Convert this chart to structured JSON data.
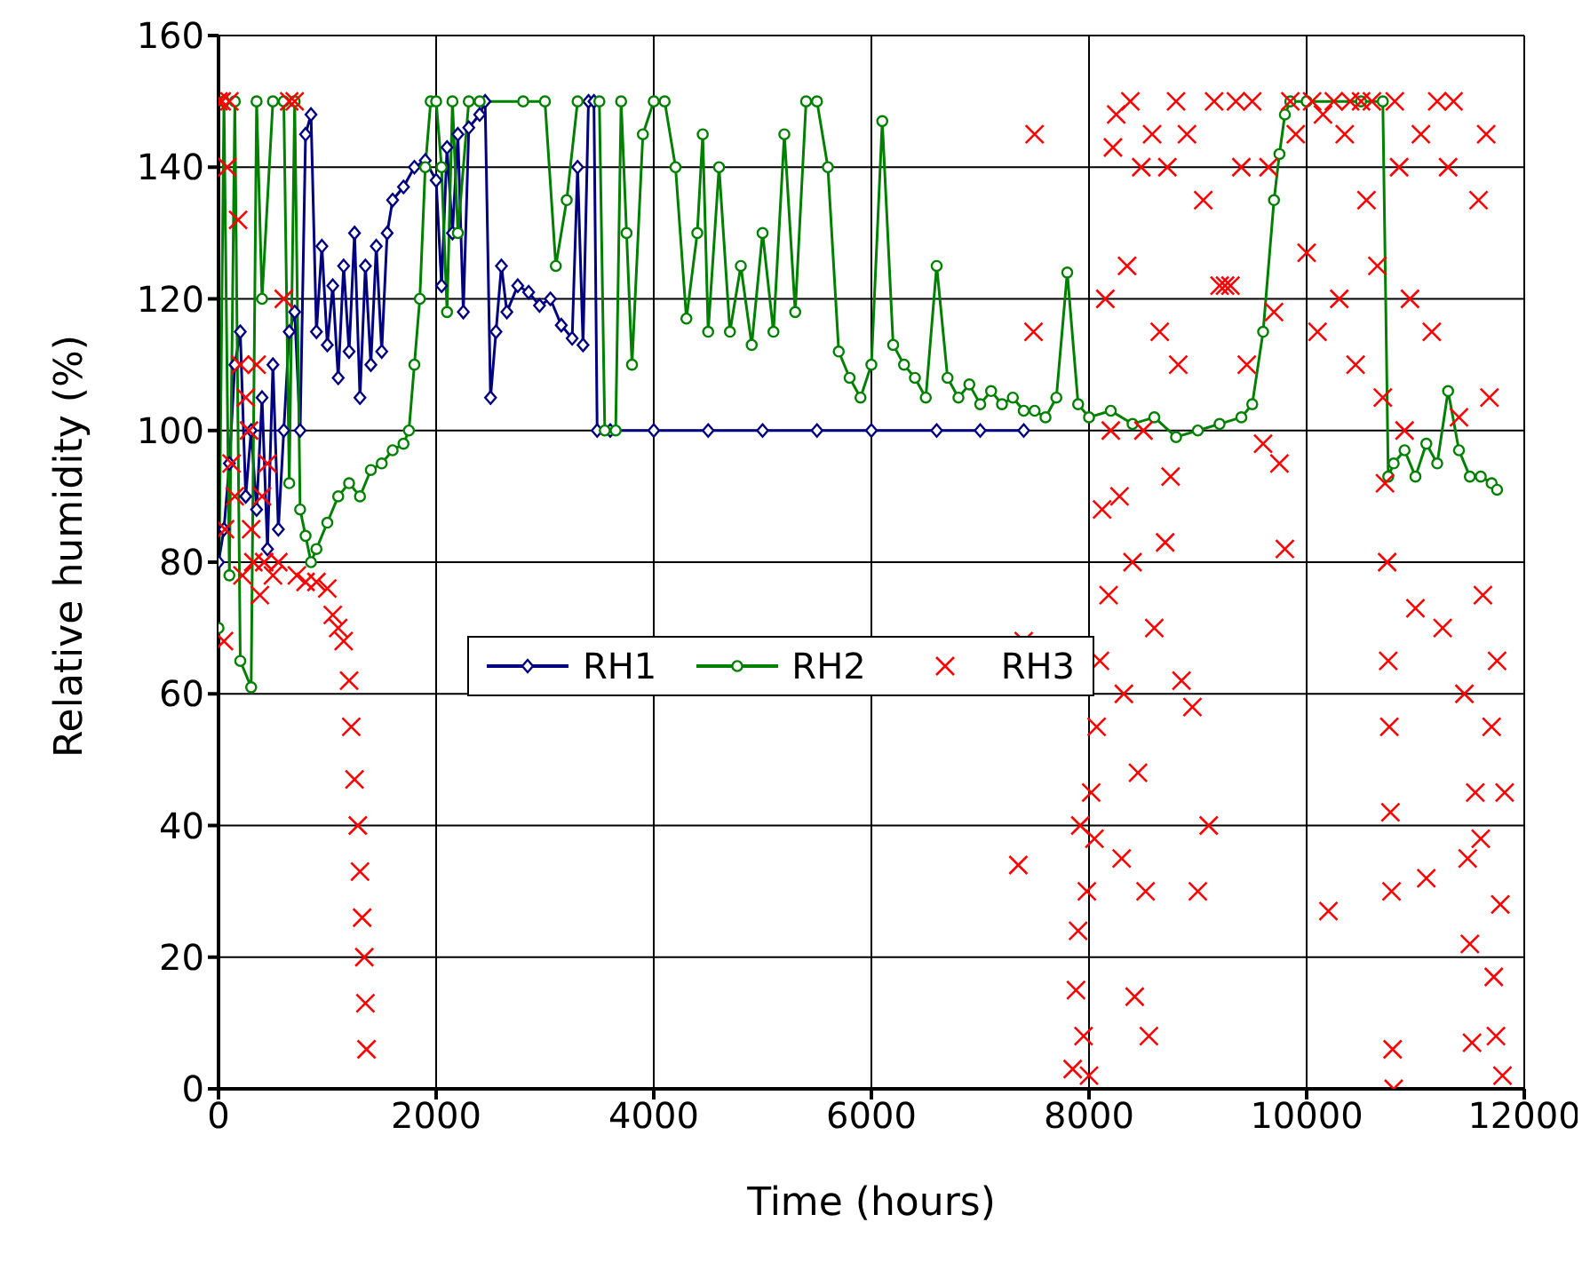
{
  "chart_data": {
    "type": "line",
    "xlabel": "Time (hours)",
    "ylabel": "Relative humidity (%)",
    "xlim": [
      0,
      12000
    ],
    "xticks": [
      0,
      2000,
      4000,
      6000,
      8000,
      10000,
      12000
    ],
    "ylim": [
      0,
      160
    ],
    "yticks": [
      0,
      20,
      40,
      60,
      80,
      100,
      120,
      140,
      160
    ],
    "grid": true,
    "legend": "left",
    "line_style": "solid",
    "series": [
      {
        "name": "RH1",
        "color": "#000080",
        "marker": "diamond",
        "x": [
          0,
          50,
          100,
          150,
          200,
          250,
          300,
          350,
          400,
          450,
          500,
          550,
          600,
          650,
          700,
          750,
          800,
          850,
          900,
          950,
          1000,
          1050,
          1100,
          1150,
          1200,
          1250,
          1300,
          1350,
          1400,
          1450,
          1500,
          1550,
          1600,
          1700,
          1800,
          1900,
          2000,
          2050,
          2100,
          2150,
          2200,
          2250,
          2300,
          2400,
          2450,
          2500,
          2550,
          2600,
          2650,
          2750,
          2850,
          2950,
          3050,
          3150,
          3250,
          3300,
          3350,
          3400,
          3450,
          3480,
          3600,
          4000,
          4500,
          5000,
          5500,
          6000,
          6600,
          7000,
          7400
        ],
        "values": [
          80,
          85,
          95,
          110,
          115,
          90,
          100,
          88,
          105,
          82,
          110,
          85,
          100,
          115,
          118,
          100,
          145,
          148,
          115,
          128,
          113,
          122,
          108,
          125,
          112,
          130,
          105,
          125,
          110,
          128,
          112,
          130,
          135,
          137,
          140,
          141,
          138,
          122,
          143,
          130,
          145,
          118,
          146,
          148,
          150,
          105,
          115,
          125,
          118,
          122,
          121,
          119,
          120,
          116,
          114,
          140,
          113,
          150,
          150,
          100,
          100,
          100,
          100,
          100,
          100,
          100,
          100,
          100,
          100
        ]
      },
      {
        "name": "RH2",
        "color": "#008000",
        "marker": "circle",
        "x": [
          0,
          50,
          100,
          150,
          200,
          300,
          350,
          400,
          500,
          600,
          650,
          700,
          750,
          800,
          850,
          900,
          1000,
          1100,
          1200,
          1300,
          1400,
          1500,
          1600,
          1700,
          1750,
          1800,
          1850,
          1900,
          1950,
          2000,
          2050,
          2100,
          2150,
          2200,
          2300,
          2400,
          2800,
          3000,
          3100,
          3200,
          3300,
          3500,
          3550,
          3650,
          3700,
          3750,
          3800,
          3900,
          4000,
          4100,
          4200,
          4300,
          4400,
          4450,
          4500,
          4600,
          4700,
          4800,
          4900,
          5000,
          5100,
          5200,
          5300,
          5400,
          5500,
          5600,
          5700,
          5800,
          5900,
          6000,
          6100,
          6200,
          6300,
          6400,
          6500,
          6600,
          6700,
          6800,
          6900,
          7000,
          7100,
          7200,
          7300,
          7400,
          7500,
          7600,
          7700,
          7800,
          7900,
          8000,
          8200,
          8400,
          8600,
          8800,
          9000,
          9200,
          9400,
          9500,
          9600,
          9700,
          9750,
          9800,
          9850,
          10000,
          10500,
          10700,
          10750,
          10800,
          10900,
          11000,
          11100,
          11200,
          11300,
          11400,
          11500,
          11600,
          11700,
          11750
        ],
        "values": [
          70,
          150,
          78,
          150,
          65,
          61,
          150,
          120,
          150,
          150,
          92,
          150,
          88,
          84,
          80,
          82,
          86,
          90,
          92,
          90,
          94,
          95,
          97,
          98,
          100,
          110,
          120,
          140,
          150,
          150,
          140,
          118,
          150,
          130,
          150,
          150,
          150,
          150,
          125,
          135,
          150,
          150,
          100,
          100,
          150,
          130,
          110,
          145,
          150,
          150,
          140,
          117,
          130,
          145,
          115,
          140,
          115,
          125,
          113,
          130,
          115,
          145,
          118,
          150,
          150,
          140,
          112,
          108,
          105,
          110,
          147,
          113,
          110,
          108,
          105,
          125,
          108,
          105,
          107,
          104,
          106,
          104,
          105,
          103,
          103,
          102,
          105,
          124,
          104,
          102,
          103,
          101,
          102,
          99,
          100,
          101,
          102,
          104,
          115,
          135,
          142,
          148,
          150,
          150,
          150,
          150,
          93,
          95,
          97,
          93,
          98,
          95,
          106,
          97,
          93,
          93,
          92,
          91
        ]
      },
      {
        "name": "RH3",
        "color": "#ff0000",
        "type": "scatter",
        "marker": "cross",
        "x": [
          0,
          30,
          50,
          60,
          80,
          100,
          120,
          150,
          180,
          200,
          220,
          250,
          280,
          300,
          320,
          350,
          380,
          400,
          420,
          450,
          500,
          550,
          600,
          650,
          700,
          720,
          800,
          900,
          1000,
          1050,
          1100,
          1150,
          1200,
          1220,
          1250,
          1280,
          1300,
          1320,
          1340,
          1350,
          1360,
          7350,
          7400,
          7490,
          7500,
          7850,
          7880,
          7900,
          7920,
          7950,
          7980,
          8000,
          8020,
          8050,
          8070,
          8100,
          8120,
          8150,
          8180,
          8200,
          8220,
          8250,
          8280,
          8300,
          8320,
          8350,
          8380,
          8400,
          8420,
          8450,
          8480,
          8500,
          8520,
          8550,
          8580,
          8600,
          8650,
          8700,
          8720,
          8750,
          8800,
          8820,
          8850,
          8900,
          8950,
          9000,
          9050,
          9100,
          9150,
          9200,
          9250,
          9300,
          9350,
          9400,
          9450,
          9500,
          9600,
          9650,
          9700,
          9750,
          9800,
          9850,
          9900,
          10000,
          10050,
          10100,
          10150,
          10200,
          10250,
          10300,
          10350,
          10400,
          10450,
          10500,
          10550,
          10600,
          10650,
          10700,
          10720,
          10740,
          10750,
          10760,
          10770,
          10780,
          10790,
          10800,
          10810,
          10850,
          10900,
          10950,
          11000,
          11050,
          11100,
          11150,
          11200,
          11250,
          11300,
          11350,
          11400,
          11450,
          11480,
          11500,
          11520,
          11550,
          11580,
          11600,
          11620,
          11650,
          11680,
          11700,
          11720,
          11740,
          11750,
          11780,
          11800,
          11820
        ],
        "values": [
          150,
          150,
          68,
          85,
          140,
          150,
          95,
          90,
          132,
          110,
          78,
          105,
          100,
          85,
          80,
          110,
          75,
          90,
          80,
          95,
          78,
          80,
          120,
          150,
          150,
          78,
          77,
          77,
          76,
          72,
          70,
          68,
          62,
          55,
          47,
          40,
          33,
          26,
          20,
          13,
          6,
          34,
          68,
          115,
          145,
          3,
          15,
          24,
          40,
          8,
          30,
          2,
          45,
          38,
          55,
          65,
          88,
          120,
          75,
          100,
          143,
          148,
          90,
          35,
          60,
          125,
          150,
          80,
          14,
          48,
          140,
          100,
          30,
          8,
          145,
          70,
          115,
          83,
          140,
          93,
          150,
          110,
          62,
          145,
          58,
          30,
          135,
          40,
          150,
          122,
          122,
          122,
          150,
          140,
          110,
          150,
          98,
          140,
          118,
          95,
          82,
          150,
          145,
          127,
          150,
          115,
          148,
          27,
          150,
          120,
          145,
          150,
          110,
          150,
          135,
          150,
          125,
          105,
          92,
          80,
          65,
          55,
          42,
          30,
          6,
          0,
          150,
          140,
          100,
          120,
          73,
          145,
          32,
          115,
          150,
          70,
          140,
          150,
          102,
          60,
          35,
          22,
          7,
          45,
          135,
          38,
          75,
          145,
          105,
          55,
          17,
          8,
          65,
          28,
          2,
          45
        ]
      }
    ]
  }
}
